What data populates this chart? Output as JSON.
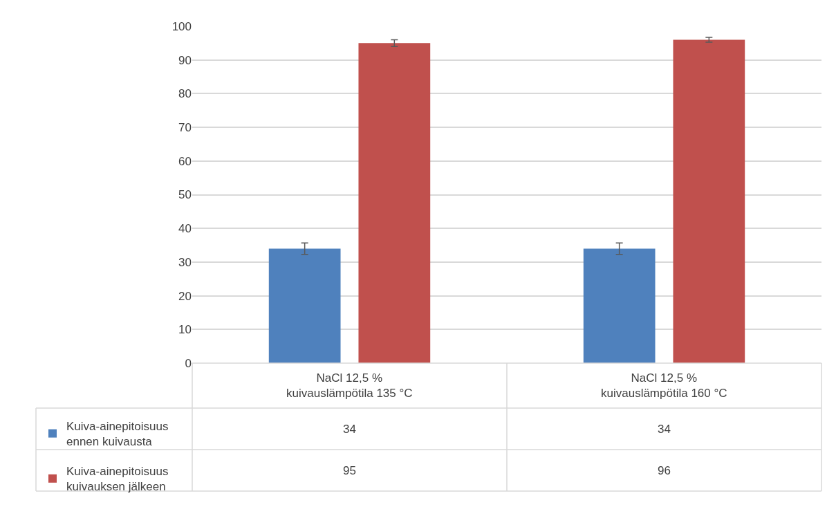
{
  "chart_data": {
    "type": "bar",
    "categories": [
      "NaCl 12,5 %\nkuivauslämpötila 135 °C",
      "NaCl 12,5 %\nkuivauslämpötila 160 °C"
    ],
    "series": [
      {
        "name": "Kuiva-ainepitoisuus\nennen kuivausta",
        "color": "#4f81bd",
        "values": [
          34,
          34
        ],
        "errors": [
          1.7,
          1.7
        ]
      },
      {
        "name": "Kuiva-ainepitoisuus\nkuivauksen jälkeen",
        "color": "#c0504d",
        "values": [
          95,
          96
        ],
        "errors": [
          1,
          0.7
        ]
      }
    ],
    "ylim": [
      0,
      100
    ],
    "yticks": [
      0,
      10,
      20,
      30,
      40,
      50,
      60,
      70,
      80,
      90,
      100
    ],
    "grid": "y",
    "data_labels": true,
    "legend": "bottom left"
  }
}
